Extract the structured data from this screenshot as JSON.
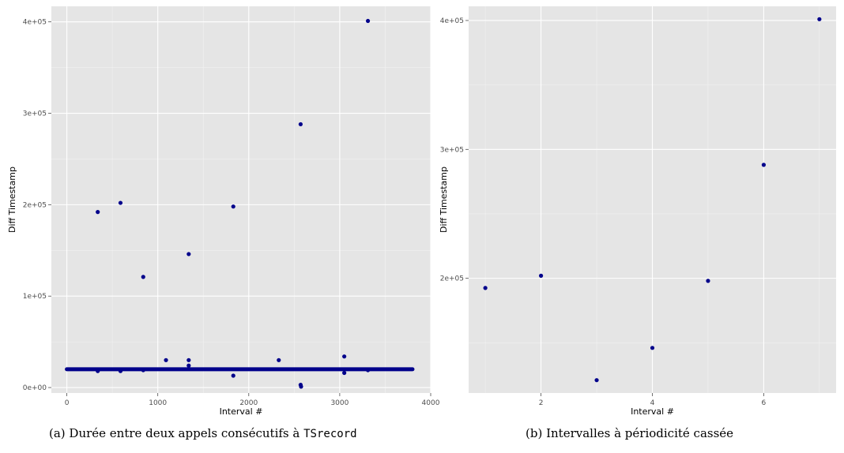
{
  "chart_data": [
    {
      "type": "scatter",
      "xlabel": "Interval #",
      "ylabel": "Diff Timestamp",
      "xlim": [
        -170,
        4000
      ],
      "ylim": [
        -6000,
        417000
      ],
      "x_ticks": [
        0,
        1000,
        2000,
        3000,
        4000
      ],
      "x_tick_labels": [
        "0",
        "1000",
        "2000",
        "3000",
        "4000"
      ],
      "y_ticks": [
        0,
        100000,
        200000,
        300000,
        400000
      ],
      "y_tick_labels": [
        "0e+00",
        "1e+05",
        "2e+05",
        "3e+05",
        "4e+05"
      ],
      "grid": true,
      "point_color": "#00008b",
      "baseline_band": {
        "x_start": 0,
        "x_end": 3800,
        "y": 20000
      },
      "points": [
        {
          "x": 340,
          "y": 192000
        },
        {
          "x": 590,
          "y": 202000
        },
        {
          "x": 840,
          "y": 121000
        },
        {
          "x": 1340,
          "y": 146000
        },
        {
          "x": 1830,
          "y": 198000
        },
        {
          "x": 2570,
          "y": 288000
        },
        {
          "x": 3310,
          "y": 401000
        },
        {
          "x": 1090,
          "y": 30000
        },
        {
          "x": 1340,
          "y": 30000
        },
        {
          "x": 2330,
          "y": 30000
        },
        {
          "x": 3050,
          "y": 34000
        },
        {
          "x": 1340,
          "y": 24000
        },
        {
          "x": 340,
          "y": 18000
        },
        {
          "x": 590,
          "y": 18000
        },
        {
          "x": 840,
          "y": 19000
        },
        {
          "x": 1830,
          "y": 13000
        },
        {
          "x": 2570,
          "y": 3000
        },
        {
          "x": 2575,
          "y": 1000
        },
        {
          "x": 3050,
          "y": 16000
        },
        {
          "x": 3310,
          "y": 19000
        }
      ]
    },
    {
      "type": "scatter",
      "xlabel": "Interval #",
      "ylabel": "Diff Timestamp",
      "xlim": [
        0.7,
        7.3
      ],
      "ylim": [
        111000,
        411000
      ],
      "x_ticks": [
        2,
        4,
        6
      ],
      "x_tick_labels": [
        "2",
        "4",
        "6"
      ],
      "y_ticks": [
        200000,
        300000,
        400000
      ],
      "y_tick_labels": [
        "2e+05",
        "3e+05",
        "4e+05"
      ],
      "grid": true,
      "point_color": "#00008b",
      "points": [
        {
          "x": 1,
          "y": 192500
        },
        {
          "x": 2,
          "y": 202000
        },
        {
          "x": 3,
          "y": 121000
        },
        {
          "x": 4,
          "y": 146000
        },
        {
          "x": 5,
          "y": 198000
        },
        {
          "x": 6,
          "y": 288000
        },
        {
          "x": 7,
          "y": 401000
        }
      ]
    }
  ],
  "captions": [
    {
      "prefix": "(a) Durée entre deux appels consécutifs à ",
      "code": "TSrecord"
    },
    {
      "text": "(b) Intervalles à périodicité cassée"
    }
  ]
}
